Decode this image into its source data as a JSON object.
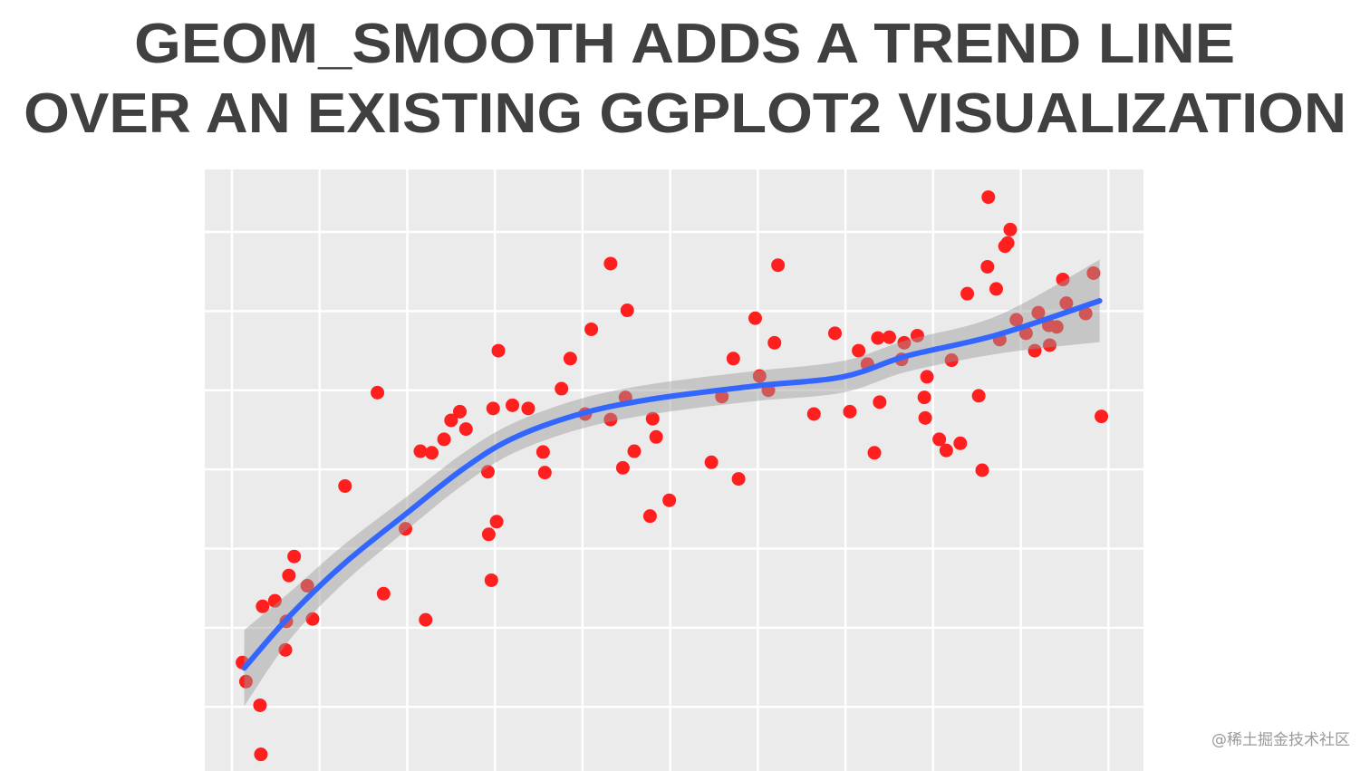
{
  "title": {
    "line1": "GEOM_SMOOTH ADDS A TREND LINE",
    "line2": "OVER AN EXISTING GGPLOT2 VISUALIZATION"
  },
  "watermark": "@稀土掘金技术社区",
  "chart_data": {
    "type": "scatter",
    "title": "GEOM_SMOOTH ADDS A TREND LINE OVER AN EXISTING GGPLOT2 VISUALIZATION",
    "xlabel": "",
    "ylabel": "",
    "tick_labels_shown": false,
    "grid": true,
    "xlim": [
      -0.31,
      10.4
    ],
    "ylim": [
      -0.81,
      6.79
    ],
    "x_gridlines": [
      0,
      1,
      2,
      3,
      4,
      5,
      6,
      7,
      8,
      9,
      10
    ],
    "y_gridlines": [
      0,
      1,
      2,
      3,
      4,
      5,
      6
    ],
    "colors": {
      "points": "#ff1f1f",
      "smooth": "#3366ff",
      "band": "#999999",
      "panel": "#ebebeb",
      "grid": "#ffffff"
    },
    "points": [
      [
        0.12,
        0.56
      ],
      [
        0.16,
        0.32
      ],
      [
        0.32,
        0.02
      ],
      [
        0.33,
        -0.6
      ],
      [
        0.35,
        1.27
      ],
      [
        0.49,
        1.34
      ],
      [
        0.62,
        1.08
      ],
      [
        0.61,
        0.72
      ],
      [
        0.65,
        1.66
      ],
      [
        0.71,
        1.9
      ],
      [
        0.86,
        1.53
      ],
      [
        0.92,
        1.11
      ],
      [
        1.29,
        2.79
      ],
      [
        1.66,
        3.97
      ],
      [
        1.73,
        1.43
      ],
      [
        1.98,
        2.25
      ],
      [
        2.15,
        3.23
      ],
      [
        2.21,
        1.1
      ],
      [
        2.28,
        3.21
      ],
      [
        2.42,
        3.38
      ],
      [
        2.5,
        3.62
      ],
      [
        2.6,
        3.73
      ],
      [
        2.67,
        3.51
      ],
      [
        2.92,
        2.97
      ],
      [
        2.93,
        2.18
      ],
      [
        2.96,
        1.6
      ],
      [
        2.98,
        3.77
      ],
      [
        3.02,
        2.34
      ],
      [
        3.04,
        4.5
      ],
      [
        3.2,
        3.81
      ],
      [
        3.38,
        3.77
      ],
      [
        3.55,
        3.22
      ],
      [
        3.57,
        2.96
      ],
      [
        3.76,
        4.02
      ],
      [
        3.86,
        4.4
      ],
      [
        4.03,
        3.7
      ],
      [
        4.1,
        4.77
      ],
      [
        4.32,
        5.6
      ],
      [
        4.32,
        3.63
      ],
      [
        4.46,
        3.02
      ],
      [
        4.49,
        3.91
      ],
      [
        4.51,
        5.01
      ],
      [
        4.59,
        3.23
      ],
      [
        4.77,
        2.41
      ],
      [
        4.8,
        3.64
      ],
      [
        4.84,
        3.41
      ],
      [
        4.99,
        2.61
      ],
      [
        5.47,
        3.09
      ],
      [
        5.59,
        3.92
      ],
      [
        5.72,
        4.4
      ],
      [
        5.78,
        2.88
      ],
      [
        5.97,
        4.91
      ],
      [
        6.02,
        4.18
      ],
      [
        6.12,
        4.0
      ],
      [
        6.19,
        4.6
      ],
      [
        6.23,
        5.58
      ],
      [
        6.64,
        3.7
      ],
      [
        6.88,
        4.72
      ],
      [
        7.05,
        3.73
      ],
      [
        7.15,
        4.5
      ],
      [
        7.25,
        4.33
      ],
      [
        7.33,
        3.21
      ],
      [
        7.37,
        4.66
      ],
      [
        7.39,
        3.85
      ],
      [
        7.5,
        4.67
      ],
      [
        7.64,
        4.39
      ],
      [
        7.67,
        4.6
      ],
      [
        7.82,
        4.69
      ],
      [
        7.9,
        3.91
      ],
      [
        7.91,
        3.65
      ],
      [
        7.93,
        4.17
      ],
      [
        8.07,
        3.38
      ],
      [
        8.15,
        3.24
      ],
      [
        8.21,
        4.38
      ],
      [
        8.31,
        3.33
      ],
      [
        8.39,
        5.22
      ],
      [
        8.52,
        3.93
      ],
      [
        8.56,
        2.99
      ],
      [
        8.62,
        5.56
      ],
      [
        8.63,
        6.44
      ],
      [
        8.72,
        5.28
      ],
      [
        8.76,
        4.64
      ],
      [
        8.82,
        5.82
      ],
      [
        8.85,
        5.86
      ],
      [
        8.88,
        6.03
      ],
      [
        8.95,
        4.89
      ],
      [
        9.06,
        4.72
      ],
      [
        9.16,
        4.5
      ],
      [
        9.2,
        4.98
      ],
      [
        9.32,
        4.82
      ],
      [
        9.33,
        4.57
      ],
      [
        9.41,
        4.8
      ],
      [
        9.48,
        5.4
      ],
      [
        9.52,
        5.1
      ],
      [
        9.74,
        4.97
      ],
      [
        9.83,
        5.48
      ],
      [
        9.92,
        3.67
      ]
    ],
    "smooth": {
      "method": "loess",
      "x": [
        0.14,
        0.66,
        1.28,
        2.01,
        2.63,
        3.2,
        3.97,
        4.8,
        5.94,
        6.97,
        7.69,
        8.73,
        9.9
      ],
      "y": [
        0.49,
        1.15,
        1.81,
        2.46,
        3.0,
        3.39,
        3.7,
        3.89,
        4.05,
        4.17,
        4.43,
        4.7,
        5.13
      ],
      "se": [
        0.48,
        0.3,
        0.24,
        0.21,
        0.2,
        0.19,
        0.19,
        0.19,
        0.19,
        0.2,
        0.2,
        0.24,
        0.52
      ]
    }
  }
}
